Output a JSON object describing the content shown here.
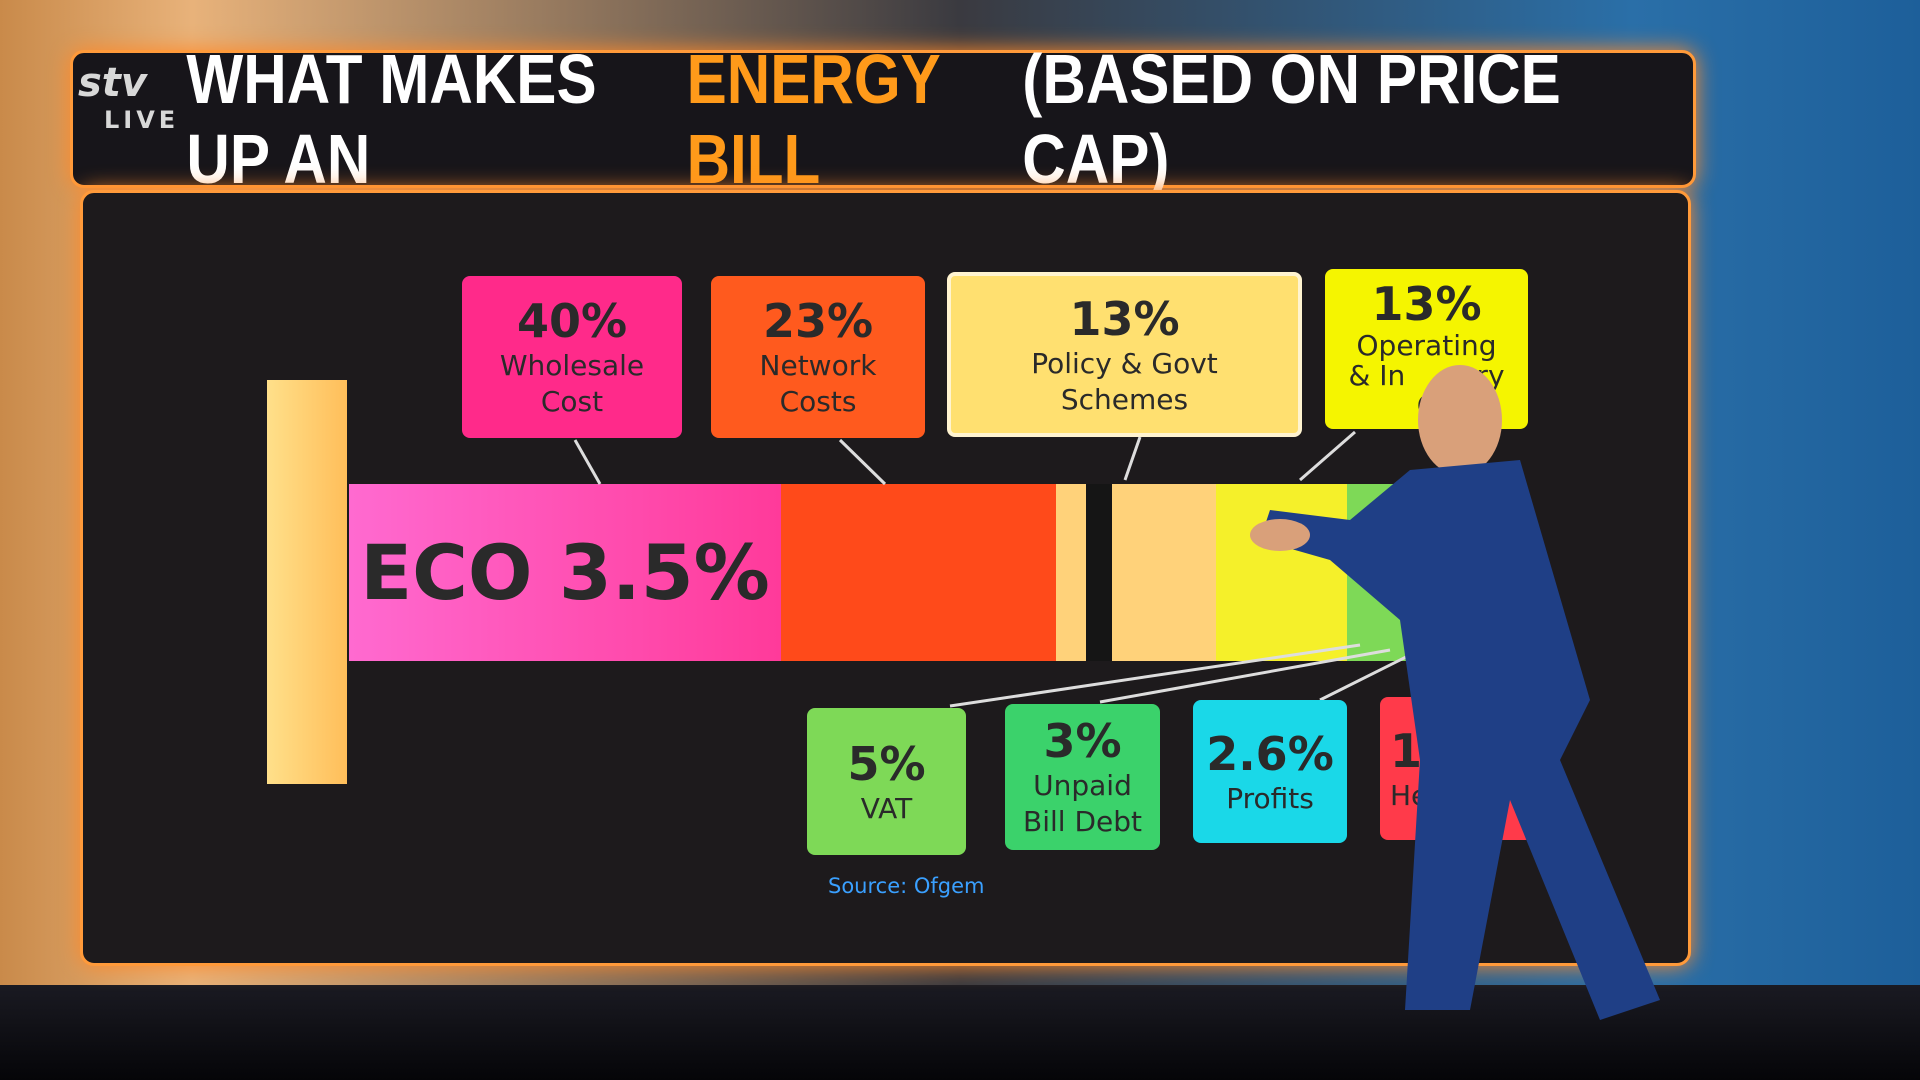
{
  "logo": {
    "brand": "stv",
    "status": "LIVE"
  },
  "title": {
    "part1": "WHAT MAKES UP AN",
    "highlight": "ENERGY BILL",
    "part2": "(BASED ON PRICE CAP)"
  },
  "bar_label": "ECO 3.5%",
  "top_boxes": [
    {
      "percent": "40%",
      "lines": [
        "Wholesale",
        "Cost"
      ]
    },
    {
      "percent": "23%",
      "lines": [
        "Network",
        "Costs"
      ]
    },
    {
      "percent": "13%",
      "lines": [
        "Policy & Govt",
        "Schemes"
      ]
    },
    {
      "percent": "13%",
      "lines": [
        "Operating",
        "& In        ry",
        "C"
      ]
    }
  ],
  "bottom_boxes": [
    {
      "percent": "5%",
      "lines": [
        "VAT"
      ]
    },
    {
      "percent": "3%",
      "lines": [
        "Unpaid",
        "Bill Debt"
      ]
    },
    {
      "percent": "2.6%",
      "lines": [
        "Profits"
      ]
    },
    {
      "percent": "1",
      "lines": [
        "He"
      ]
    }
  ],
  "source": "Source: Ofgem"
}
